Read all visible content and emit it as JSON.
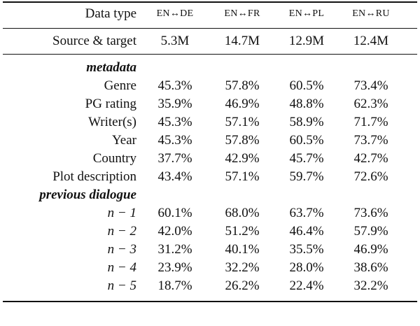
{
  "table": {
    "header": [
      "Data type",
      "EN↔DE",
      "EN↔FR",
      "EN↔PL",
      "EN↔RU"
    ],
    "source": [
      "Source & target",
      "5.3M",
      "14.7M",
      "12.9M",
      "12.4M"
    ],
    "sections": [
      {
        "title": "metadata",
        "rows": [
          [
            "Genre",
            "45.3%",
            "57.8%",
            "60.5%",
            "73.4%"
          ],
          [
            "PG rating",
            "35.9%",
            "46.9%",
            "48.8%",
            "62.3%"
          ],
          [
            "Writer(s)",
            "45.3%",
            "57.1%",
            "58.9%",
            "71.7%"
          ],
          [
            "Year",
            "45.3%",
            "57.8%",
            "60.5%",
            "73.7%"
          ],
          [
            "Country",
            "37.7%",
            "42.9%",
            "45.7%",
            "42.7%"
          ],
          [
            "Plot description",
            "43.4%",
            "57.1%",
            "59.7%",
            "72.6%"
          ]
        ]
      },
      {
        "title": "previous dialogue",
        "rows": [
          [
            "n − 1",
            "60.1%",
            "68.0%",
            "63.7%",
            "73.6%"
          ],
          [
            "n − 2",
            "42.0%",
            "51.2%",
            "46.4%",
            "57.9%"
          ],
          [
            "n − 3",
            "31.2%",
            "40.1%",
            "35.5%",
            "46.9%"
          ],
          [
            "n − 4",
            "23.9%",
            "32.2%",
            "28.0%",
            "38.6%"
          ],
          [
            "n − 5",
            "18.7%",
            "26.2%",
            "22.4%",
            "32.2%"
          ]
        ]
      }
    ]
  }
}
